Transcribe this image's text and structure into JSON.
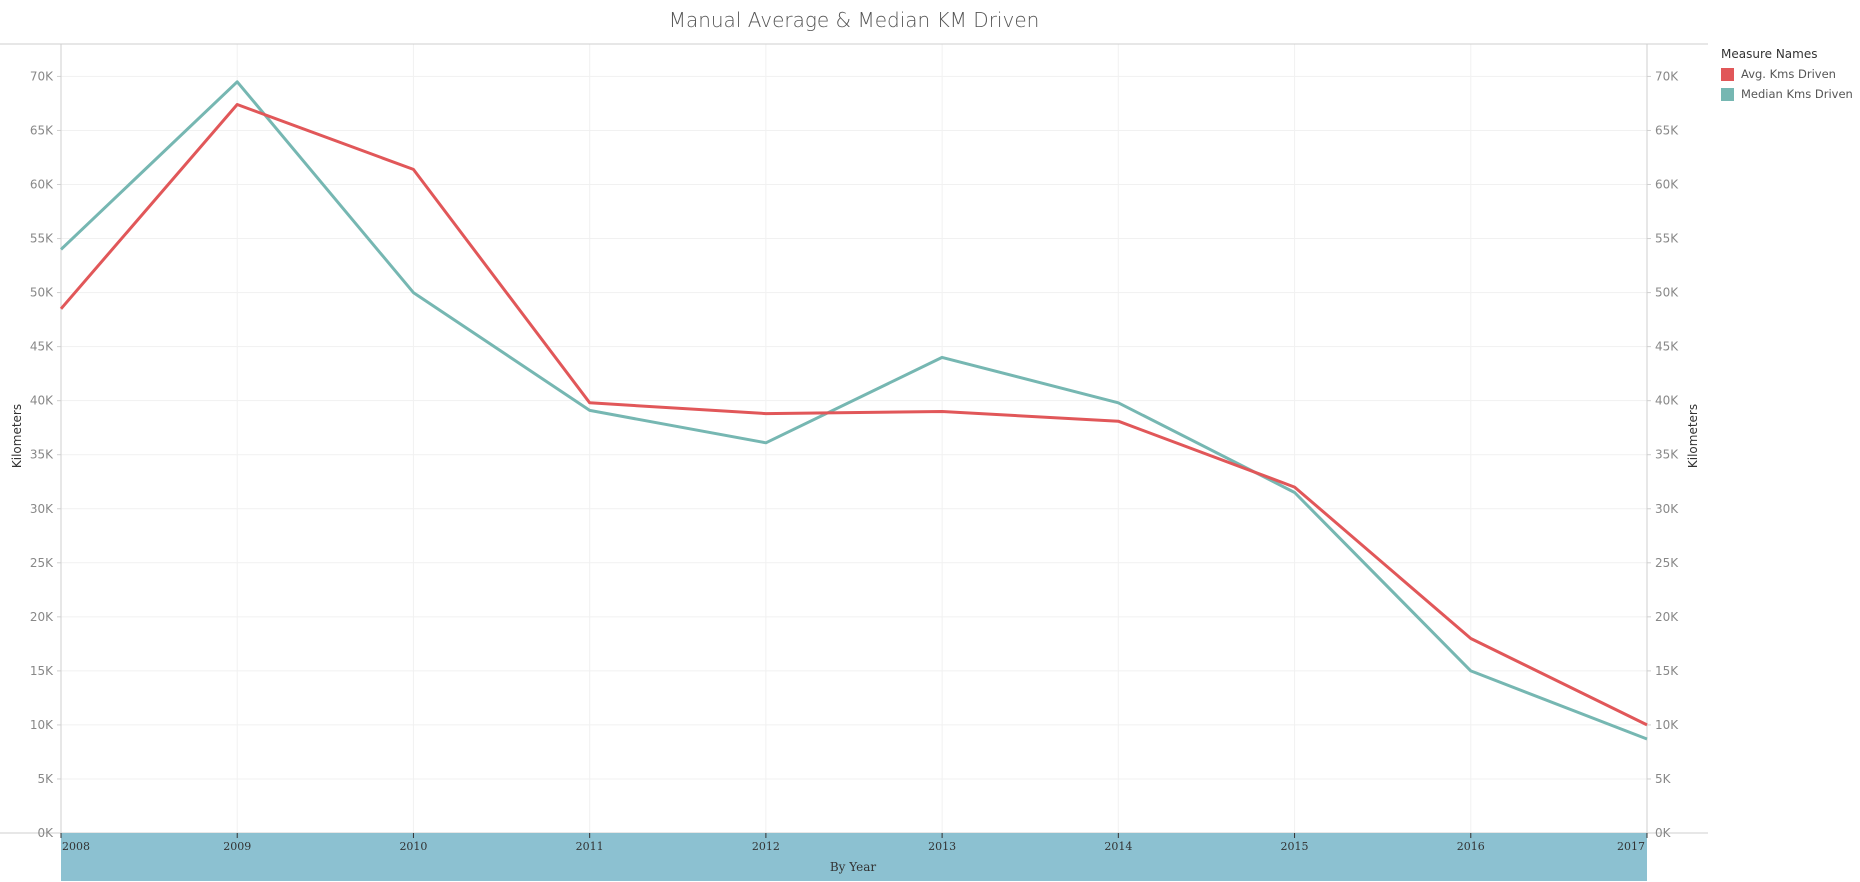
{
  "chart_data": {
    "type": "line",
    "title": "Manual Average & Median KM Driven",
    "xlabel": "By Year",
    "ylabel": "Kilometers",
    "ylabel_right": "Kilometers",
    "x": [
      2008,
      2009,
      2010,
      2011,
      2012,
      2013,
      2014,
      2015,
      2016,
      2017
    ],
    "ylim": [
      0,
      73000
    ],
    "yticks": [
      0,
      5000,
      10000,
      15000,
      20000,
      25000,
      30000,
      35000,
      40000,
      45000,
      50000,
      55000,
      60000,
      65000,
      70000
    ],
    "ytick_labels": [
      "0K",
      "5K",
      "10K",
      "15K",
      "20K",
      "25K",
      "30K",
      "35K",
      "40K",
      "45K",
      "50K",
      "55K",
      "60K",
      "65K",
      "70K"
    ],
    "grid": true,
    "legend": {
      "title": "Measure Names",
      "placement": "top-right"
    },
    "series": [
      {
        "name": "Avg. Kms Driven",
        "color": "#e15759",
        "values": [
          48500,
          67400,
          61400,
          39800,
          38800,
          39000,
          38100,
          32000,
          18000,
          10000
        ]
      },
      {
        "name": "Median Kms Driven",
        "color": "#76b7b2",
        "values": [
          54000,
          69500,
          50000,
          39100,
          36100,
          44000,
          39800,
          31500,
          15000,
          8700
        ]
      }
    ],
    "x_band_color": "#8cc1d1"
  }
}
